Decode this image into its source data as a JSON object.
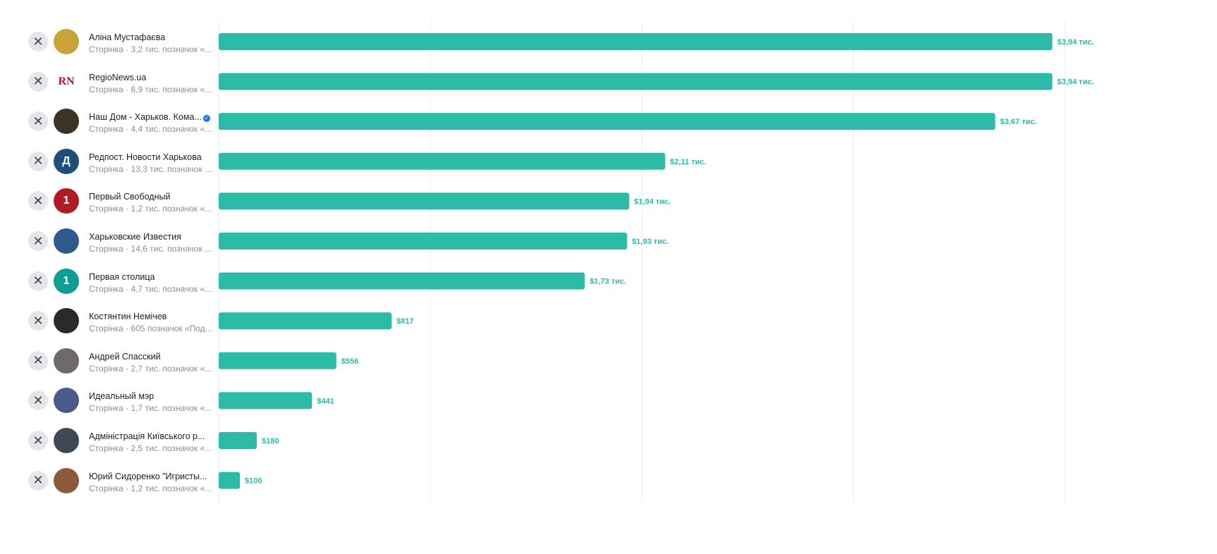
{
  "colors": {
    "bar": "#2bbba7",
    "label": "#2bbba7",
    "grid": "#ebebeb"
  },
  "rows": [
    {
      "name": "Аліна Мустафаєва",
      "sub": "Сторінка · 3,2 тис. позначок «...",
      "avatar_color": "#c9a23a",
      "avatar_text": ""
    },
    {
      "name": "RegioNews.ua",
      "sub": "Сторінка · 6,9 тис. позначок «...",
      "avatar_color": "#ffffff",
      "avatar_text": "RN"
    },
    {
      "name": "Наш Дом - Харьков. Кома...",
      "sub": "Сторінка · 4,4 тис. позначок «...",
      "avatar_color": "#3b3426",
      "avatar_text": "",
      "verified": true
    },
    {
      "name": "Редпост. Новости Харькова",
      "sub": "Сторінка · 13,3 тис. позначок ...",
      "avatar_color": "#1c4f7a",
      "avatar_text": "Д"
    },
    {
      "name": "Первый Свободный",
      "sub": "Сторінка · 1,2 тис. позначок «...",
      "avatar_color": "#b01c24",
      "avatar_text": "1"
    },
    {
      "name": "Харьковские Известия",
      "sub": "Сторінка · 14,6 тис. позначок ...",
      "avatar_color": "#2c5a8c",
      "avatar_text": ""
    },
    {
      "name": "Первая столица",
      "sub": "Сторінка · 4,7 тис. позначок «...",
      "avatar_color": "#0f9e94",
      "avatar_text": "1"
    },
    {
      "name": "Костянтин Немічев",
      "sub": "Сторінка · 605 позначок «Под...",
      "avatar_color": "#2a2a2a",
      "avatar_text": ""
    },
    {
      "name": "Андрей Спасский",
      "sub": "Сторінка · 2,7 тис. позначок «...",
      "avatar_color": "#6e6a6a",
      "avatar_text": ""
    },
    {
      "name": "Идеальный мэр",
      "sub": "Сторінка · 1,7 тис. позначок «...",
      "avatar_color": "#4a5a8a",
      "avatar_text": ""
    },
    {
      "name": "Адміністрація Київського р...",
      "sub": "Сторінка · 2,5 тис. позначок «...",
      "avatar_color": "#3d4a55",
      "avatar_text": ""
    },
    {
      "name": "Юрий Сидоренко \"Игристы...",
      "sub": "Сторінка · 1,2 тис. позначок «...",
      "avatar_color": "#8a5a3a",
      "avatar_text": ""
    }
  ],
  "chart_data": {
    "type": "bar",
    "orientation": "horizontal",
    "categories": [
      "Аліна Мустафаєва",
      "RegioNews.ua",
      "Наш Дом - Харьков. Кома...",
      "Редпост. Новости Харькова",
      "Первый Свободный",
      "Харьковские Известия",
      "Первая столица",
      "Костянтин Немічев",
      "Андрей Спасский",
      "Идеальный мэр",
      "Адміністрація Київського р...",
      "Юрий Сидоренко \"Игристы..."
    ],
    "values": [
      3940,
      3940,
      3670,
      2110,
      1940,
      1930,
      1730,
      817,
      556,
      441,
      180,
      100
    ],
    "labels": [
      "$3,94 тис.",
      "$3,94 тис.",
      "$3,67 тис.",
      "$2,11 тис.",
      "$1,94 тис.",
      "$1,93 тис.",
      "$1,73 тис.",
      "$817",
      "$556",
      "$441",
      "$180",
      "$100"
    ],
    "xlim": [
      0,
      4000
    ],
    "grid_step": 1000,
    "grid": true
  }
}
